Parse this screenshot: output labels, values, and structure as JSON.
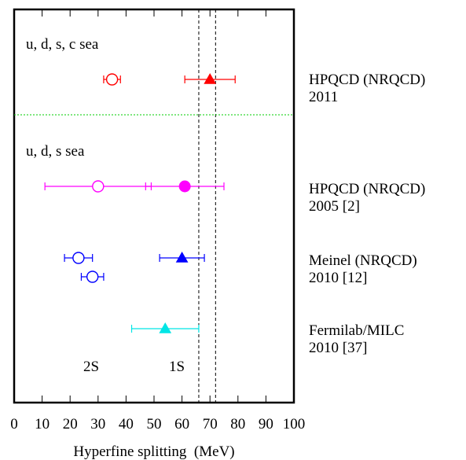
{
  "chart_data": {
    "type": "scatter",
    "title": "",
    "xlabel": "Hyperfine splitting  (MeV)",
    "ylabel": "",
    "xlim": [
      0,
      100
    ],
    "x_ticks": [
      "0",
      "10",
      "20",
      "30",
      "40",
      "50",
      "60",
      "70",
      "80",
      "90",
      "100"
    ],
    "grid": false,
    "reference_lines": [
      66,
      72
    ],
    "section_labels": [
      "u, d, s, c sea",
      "u, d, s sea"
    ],
    "column_labels": [
      "2S",
      "1S"
    ],
    "groups": [
      {
        "label_line1": "HPQCD (NRQCD)",
        "label_line2": "2011",
        "points": [
          {
            "state": "2S",
            "value": 35,
            "err_minus": 3,
            "err_plus": 3,
            "marker": "open-circle",
            "color": "#ff0000"
          },
          {
            "state": "1S",
            "value": 70,
            "err_minus": 9,
            "err_plus": 9,
            "marker": "filled-triangle",
            "color": "#ff0000"
          }
        ]
      },
      {
        "label_line1": "HPQCD (NRQCD)",
        "label_line2": "2005 [2]",
        "points": [
          {
            "state": "2S",
            "value": 30,
            "err_minus": 19,
            "err_plus": 19,
            "marker": "open-circle",
            "color": "#ff00ff"
          },
          {
            "state": "1S",
            "value": 61,
            "err_minus": 14,
            "err_plus": 14,
            "marker": "filled-circle",
            "color": "#ff00ff"
          }
        ]
      },
      {
        "label_line1": "Meinel (NRQCD)",
        "label_line2": "2010 [12]",
        "points": [
          {
            "state": "2S",
            "value": 23,
            "err_minus": 5,
            "err_plus": 5,
            "marker": "open-circle",
            "color": "#0000ff"
          },
          {
            "state": "2S",
            "value": 28,
            "err_minus": 4,
            "err_plus": 4,
            "marker": "open-circle",
            "color": "#0000ff"
          },
          {
            "state": "1S",
            "value": 60,
            "err_minus": 8,
            "err_plus": 8,
            "marker": "filled-triangle",
            "color": "#0000ff"
          }
        ]
      },
      {
        "label_line1": "Fermilab/MILC",
        "label_line2": "2010 [37]",
        "points": [
          {
            "state": "1S",
            "value": 54,
            "err_minus": 12,
            "err_plus": 12,
            "marker": "filled-triangle",
            "color": "#00e5e5"
          }
        ]
      }
    ]
  }
}
